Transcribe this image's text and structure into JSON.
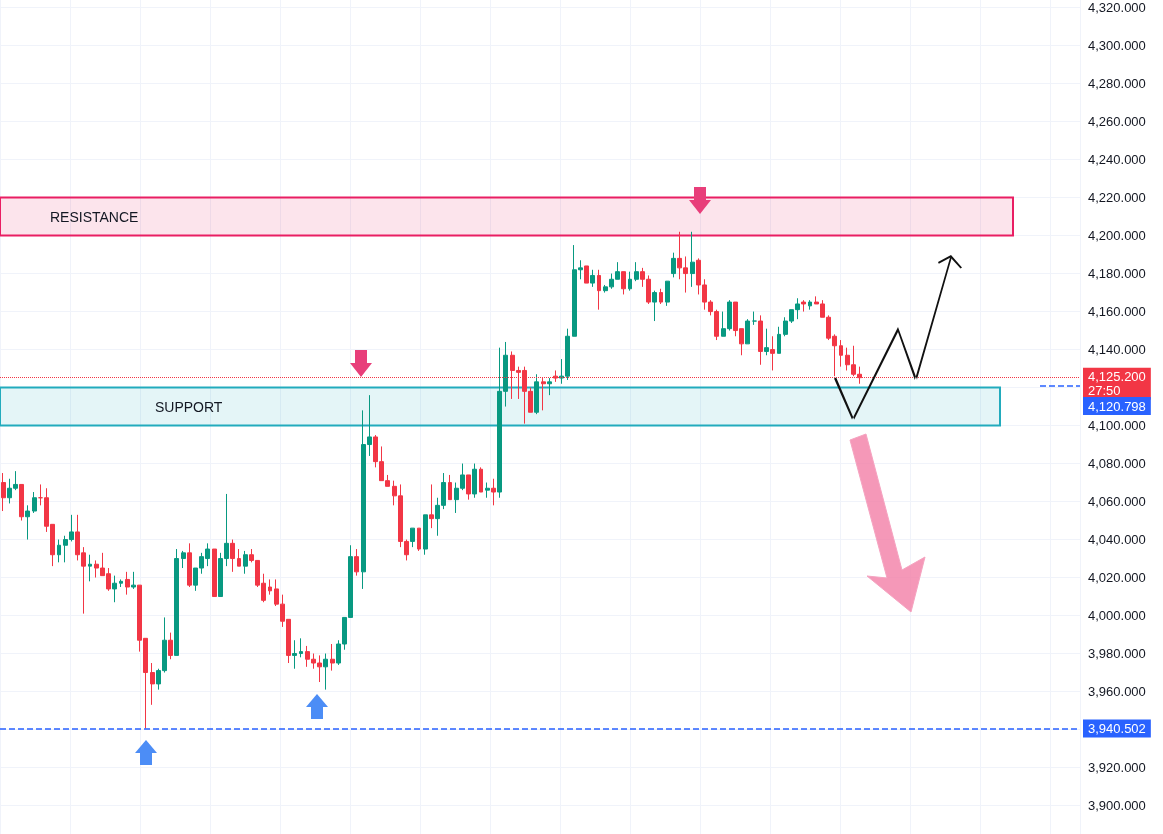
{
  "chart_data": {
    "type": "candlestick",
    "categories": [
      null,
      null,
      null,
      null,
      null,
      null,
      null,
      null,
      null,
      null,
      null,
      null,
      null,
      null,
      null,
      null,
      null,
      null,
      null,
      null,
      null,
      null,
      null,
      null,
      null,
      null,
      null,
      null,
      null,
      null,
      null,
      null,
      null,
      null,
      null,
      null,
      null,
      null,
      null,
      null,
      null,
      null,
      null,
      null,
      null,
      null,
      null,
      null,
      null,
      null,
      null,
      null,
      null,
      null,
      null,
      null,
      null,
      null,
      null,
      null,
      null,
      null,
      null,
      null,
      null,
      null,
      null,
      null,
      null,
      null,
      null,
      null,
      null,
      null,
      null,
      null,
      null,
      null,
      null,
      null,
      null,
      null,
      null,
      null,
      null,
      null,
      null,
      null,
      null,
      null,
      null,
      null,
      null,
      null,
      null,
      null,
      null,
      null,
      null,
      null,
      null,
      null,
      null,
      null,
      null,
      null,
      null,
      null,
      null,
      null,
      null,
      null,
      null,
      null,
      null,
      null,
      null,
      null,
      null,
      null,
      null,
      null,
      null,
      null,
      null,
      null,
      null,
      null,
      null,
      null,
      null,
      null,
      null,
      null,
      null,
      null,
      null,
      null,
      null,
      null,
      null,
      null,
      null,
      null,
      null,
      null,
      null,
      null,
      null,
      null,
      null,
      null,
      null,
      null,
      null,
      null,
      null,
      null,
      null,
      null,
      null,
      null,
      null,
      null,
      null,
      null,
      null,
      null,
      null,
      null,
      null,
      null,
      null,
      null
    ],
    "ohlc": [
      [
        4070,
        4075,
        4055,
        4062
      ],
      [
        4062,
        4072,
        4059,
        4067
      ],
      [
        4067,
        4076,
        4066,
        4069
      ],
      [
        4069,
        4069,
        4050,
        4052
      ],
      [
        4052,
        4058,
        4040,
        4055
      ],
      [
        4055,
        4065,
        4054,
        4062
      ],
      [
        4062,
        4069,
        4058,
        4062
      ],
      [
        4062,
        4067,
        4044,
        4047
      ],
      [
        4048,
        4048,
        4026,
        4032
      ],
      [
        4032,
        4040,
        4028,
        4037
      ],
      [
        4037,
        4042,
        4028,
        4040
      ],
      [
        4040,
        4053,
        4039,
        4044
      ],
      [
        4044,
        4053,
        4029,
        4032
      ],
      [
        4033,
        4036,
        4001,
        4026
      ],
      [
        4026,
        4032,
        4018,
        4027
      ],
      [
        4027,
        4029,
        4020,
        4025
      ],
      [
        4025,
        4033,
        4021,
        4021
      ],
      [
        4022,
        4025,
        4013,
        4014
      ],
      [
        4014,
        4021,
        4007,
        4017
      ],
      [
        4017,
        4019,
        4015,
        4018
      ],
      [
        4019,
        4023,
        4011,
        4015
      ],
      [
        4015,
        4023,
        4014,
        4016
      ],
      [
        4016,
        4016,
        3981,
        3987
      ],
      [
        3988,
        3988,
        3940.5,
        3970
      ],
      [
        3970,
        3975,
        3953,
        3964
      ],
      [
        3964,
        3972,
        3961,
        3971
      ],
      [
        3971,
        3999,
        3970,
        3987
      ],
      [
        3987,
        3991,
        3977,
        3979
      ],
      [
        3979,
        4035,
        3979,
        4030
      ],
      [
        4030,
        4034,
        4025,
        4033
      ],
      [
        4033,
        4038,
        4015,
        4016
      ],
      [
        4016,
        4025,
        4013,
        4025
      ],
      [
        4025,
        4033,
        4022,
        4031
      ],
      [
        4030,
        4038,
        4026,
        4035
      ],
      [
        4035,
        4035,
        4010,
        4010
      ],
      [
        4010,
        4033,
        4010,
        4030
      ],
      [
        4030,
        4064,
        4026,
        4038
      ],
      [
        4038,
        4040,
        4023,
        4030
      ],
      [
        4030,
        4035,
        4026,
        4026
      ],
      [
        4026,
        4034,
        4022,
        4032
      ],
      [
        4032,
        4035,
        4028,
        4029
      ],
      [
        4029,
        4029,
        4015,
        4016
      ],
      [
        4017,
        4022,
        4007,
        4008
      ],
      [
        4015,
        4019,
        4011,
        4013
      ],
      [
        4014,
        4019,
        4005,
        4006
      ],
      [
        4006,
        4011,
        3994,
        3997
      ],
      [
        3998,
        3998,
        3975,
        3979
      ],
      [
        3979,
        3987,
        3972,
        3980
      ],
      [
        3980,
        3988,
        3978,
        3981
      ],
      [
        3981,
        3984,
        3973,
        3977
      ],
      [
        3977,
        3980,
        3972,
        3975
      ],
      [
        3975,
        3979,
        3965,
        3973
      ],
      [
        3973,
        3980,
        3961,
        3977
      ],
      [
        3977,
        3985,
        3971,
        3975
      ],
      [
        3975,
        3987,
        3974,
        3985
      ],
      [
        3985,
        3999,
        3982,
        3999
      ],
      [
        3999,
        4037,
        3999,
        4031
      ],
      [
        4031,
        4035,
        4021,
        4023
      ],
      [
        4023,
        4108,
        4014,
        4090
      ],
      [
        4090,
        4116,
        4084,
        4094
      ],
      [
        4094,
        4095,
        4078,
        4081
      ],
      [
        4081,
        4089,
        4071,
        4071
      ],
      [
        4071,
        4074,
        4068,
        4068
      ],
      [
        4068,
        4071,
        4058,
        4063
      ],
      [
        4063,
        4069,
        4036,
        4039
      ],
      [
        4039,
        4040,
        4029,
        4032
      ],
      [
        4039,
        4046,
        4036,
        4046
      ],
      [
        4046,
        4046,
        4034,
        4035
      ],
      [
        4035,
        4053,
        4032,
        4053
      ],
      [
        4053,
        4069,
        4046,
        4051
      ],
      [
        4051,
        4062,
        4042,
        4058
      ],
      [
        4058,
        4075,
        4056,
        4070
      ],
      [
        4070,
        4074,
        4061,
        4061
      ],
      [
        4061,
        4070,
        4054,
        4067
      ],
      [
        4067,
        4080,
        4066,
        4074
      ],
      [
        4074,
        4074,
        4061,
        4064
      ],
      [
        4064,
        4080,
        4062,
        4077
      ],
      [
        4077,
        4078,
        4065,
        4065
      ],
      [
        4066,
        4070,
        4062,
        4067
      ],
      [
        4067,
        4072,
        4058,
        4065
      ],
      [
        4065,
        4141,
        4062,
        4118
      ],
      [
        4118,
        4144,
        4110,
        4137
      ],
      [
        4137,
        4139,
        4114,
        4129
      ],
      [
        4129,
        4131,
        4114,
        4128
      ],
      [
        4129,
        4131,
        4101,
        4118
      ],
      [
        4118,
        4120,
        4107,
        4107
      ],
      [
        4107,
        4127,
        4106,
        4123
      ],
      [
        4123,
        4125,
        4108,
        4122
      ],
      [
        4122,
        4125,
        4116,
        4123
      ],
      [
        4126,
        4129,
        4123,
        4125
      ],
      [
        4125,
        4135,
        4122,
        4126
      ],
      [
        4126,
        4151,
        4124,
        4147
      ],
      [
        4147,
        4195,
        4147,
        4182
      ],
      [
        4182,
        4187,
        4177,
        4183
      ],
      [
        4184,
        4184,
        4175,
        4175
      ],
      [
        4175,
        4182,
        4173,
        4179
      ],
      [
        4179,
        4182,
        4161,
        4171
      ],
      [
        4171,
        4174,
        4170,
        4173
      ],
      [
        4173,
        4180,
        4172,
        4177
      ],
      [
        4177,
        4186,
        4177,
        4181
      ],
      [
        4181,
        4181,
        4169,
        4172
      ],
      [
        4172,
        4181,
        4171,
        4177
      ],
      [
        4177,
        4186,
        4176,
        4181
      ],
      [
        4181,
        4183,
        4173,
        4177
      ],
      [
        4177,
        4179,
        4164,
        4165
      ],
      [
        4165,
        4171,
        4155,
        4170
      ],
      [
        4170,
        4172,
        4164,
        4165
      ],
      [
        4165,
        4176,
        4163,
        4176
      ],
      [
        4180,
        4191,
        4178,
        4188
      ],
      [
        4188,
        4202,
        4177,
        4183
      ],
      [
        4183,
        4189,
        4170,
        4180
      ],
      [
        4180,
        4202,
        4173,
        4186
      ],
      [
        4187,
        4188,
        4169,
        4174
      ],
      [
        4174,
        4177,
        4161,
        4165
      ],
      [
        4165,
        4166,
        4158,
        4160
      ],
      [
        4160,
        4161,
        4145,
        4147
      ],
      [
        4147,
        4160,
        4147,
        4151
      ],
      [
        4151,
        4166,
        4150,
        4165
      ],
      [
        4165,
        4165,
        4147,
        4150
      ],
      [
        4151,
        4151,
        4137,
        4143
      ],
      [
        4143,
        4156,
        4143,
        4155
      ],
      [
        4155,
        4160,
        4153,
        4155
      ],
      [
        4155,
        4158,
        4132,
        4139
      ],
      [
        4139,
        4151,
        4137,
        4141
      ],
      [
        4140,
        4147,
        4129,
        4138
      ],
      [
        4138,
        4152,
        4138,
        4148
      ],
      [
        4148,
        4157,
        4147,
        4155
      ],
      [
        4155,
        4161,
        4154,
        4161
      ],
      [
        4161,
        4167,
        4156,
        4164
      ],
      [
        4165,
        4166,
        4160,
        4164
      ],
      [
        4163,
        4166,
        4161,
        4165
      ],
      [
        4165,
        4168,
        4164,
        4164
      ],
      [
        4164,
        4166,
        4157,
        4157
      ],
      [
        4157,
        4158,
        4145,
        4146
      ],
      [
        4147,
        4148,
        4126,
        4142
      ],
      [
        4142,
        4145,
        4131,
        4137
      ],
      [
        4137,
        4141,
        4129,
        4132
      ],
      [
        4132,
        4142,
        4126,
        4127
      ],
      [
        4127,
        4131,
        4122,
        4125.2
      ],
      null,
      null,
      null,
      null,
      null,
      null,
      null,
      null,
      null,
      null,
      null,
      null,
      null,
      null,
      null,
      null,
      null,
      null,
      null,
      null,
      null,
      null,
      null,
      null,
      null,
      null,
      null,
      null,
      null,
      null,
      null,
      null,
      null,
      null,
      null
    ],
    "colors": [
      "#f23645",
      "#089981",
      "#089981",
      "#f23645",
      "#089981",
      "#089981",
      "#f23645",
      "#f23645",
      "#f23645",
      "#089981",
      "#089981",
      "#089981",
      "#f23645",
      "#f23645",
      "#089981",
      "#f23645",
      "#f23645",
      "#f23645",
      "#089981",
      "#089981",
      "#f23645",
      "#089981",
      "#f23645",
      "#f23645",
      "#f23645",
      "#089981",
      "#089981",
      "#f23645",
      "#089981",
      "#089981",
      "#f23645",
      "#089981",
      "#089981",
      "#089981",
      "#f23645",
      "#089981",
      "#089981",
      "#f23645",
      "#f23645",
      "#089981",
      "#f23645",
      "#f23645",
      "#f23645",
      "#f23645",
      "#f23645",
      "#f23645",
      "#f23645",
      "#089981",
      "#089981",
      "#f23645",
      "#f23645",
      "#f23645",
      "#089981",
      "#f23645",
      "#089981",
      "#089981",
      "#089981",
      "#f23645",
      "#089981",
      "#089981",
      "#f23645",
      "#f23645",
      "#f23645",
      "#f23645",
      "#f23645",
      "#f23645",
      "#089981",
      "#f23645",
      "#089981",
      "#f23645",
      "#089981",
      "#089981",
      "#f23645",
      "#089981",
      "#089981",
      "#f23645",
      "#089981",
      "#f23645",
      "#089981",
      "#f23645",
      "#089981",
      "#089981",
      "#f23645",
      "#f23645",
      "#f23645",
      "#f23645",
      "#089981",
      "#f23645",
      "#089981",
      "#f23645",
      "#089981",
      "#089981",
      "#089981",
      "#089981",
      "#f23645",
      "#089981",
      "#f23645",
      "#089981",
      "#089981",
      "#089981",
      "#f23645",
      "#089981",
      "#089981",
      "#f23645",
      "#f23645",
      "#089981",
      "#f23645",
      "#089981",
      "#089981",
      "#f23645",
      "#f23645",
      "#089981",
      "#f23645",
      "#f23645",
      "#f23645",
      "#f23645",
      "#089981",
      "#089981",
      "#f23645",
      "#f23645",
      "#089981",
      "#089981",
      "#f23645",
      "#089981",
      "#f23645",
      "#089981",
      "#089981",
      "#089981",
      "#089981",
      "#f23645",
      "#089981",
      "#f23645",
      "#f23645",
      "#f23645",
      "#f23645",
      "#f23645",
      "#f23645",
      "#f23645",
      "#f23645",
      null,
      null,
      null,
      null,
      null,
      null,
      null,
      null,
      null,
      null,
      null,
      null,
      null,
      null,
      null,
      null,
      null,
      null,
      null,
      null,
      null,
      null,
      null,
      null,
      null,
      null,
      null,
      null,
      null,
      null,
      null,
      null,
      null,
      null,
      null
    ],
    "ylim": [
      3885,
      4324
    ],
    "yticks": [
      {
        "value": 3900,
        "label": "3,900.000"
      },
      {
        "value": 3920,
        "label": "3,920.000"
      },
      {
        "value": 3940,
        "label": null
      },
      {
        "value": 3960,
        "label": "3,960.000"
      },
      {
        "value": 3980,
        "label": "3,980.000"
      },
      {
        "value": 4000,
        "label": "4,000.000"
      },
      {
        "value": 4020,
        "label": "4,020.000"
      },
      {
        "value": 4040,
        "label": "4,040.000"
      },
      {
        "value": 4060,
        "label": "4,060.000"
      },
      {
        "value": 4080,
        "label": "4,080.000"
      },
      {
        "value": 4100,
        "label": "4,100.000"
      },
      {
        "value": 4120,
        "label": null
      },
      {
        "value": 4140,
        "label": "4,140.000"
      },
      {
        "value": 4160,
        "label": "4,160.000"
      },
      {
        "value": 4180,
        "label": "4,180.000"
      },
      {
        "value": 4200,
        "label": "4,200.000"
      },
      {
        "value": 4220,
        "label": "4,220.000"
      },
      {
        "value": 4240,
        "label": "4,240.000"
      },
      {
        "value": 4260,
        "label": "4,260.000"
      },
      {
        "value": 4280,
        "label": "4,280.000"
      },
      {
        "value": 4300,
        "label": "4,300.000"
      },
      {
        "value": 4320,
        "label": "4,320.000"
      }
    ],
    "tick_labels": "y",
    "grid": true,
    "bands": [
      {
        "axis": "y",
        "from": 4200,
        "to": 4220,
        "label": "RESISTANCE",
        "color": "#e91e63"
      },
      {
        "axis": "y",
        "from": 4100,
        "to": 4120,
        "label": "SUPPORT",
        "color": "#22abbd"
      }
    ],
    "ref_lines": [
      {
        "axis": "y",
        "value": 4125.2,
        "label": "4,125.200",
        "color": "#f23645",
        "line_style": "dotted"
      },
      {
        "axis": "y",
        "value": 4120.798,
        "label": "4,120.798",
        "color": "#2962ff",
        "line_style": "dashed"
      },
      {
        "axis": "y",
        "value": 3940.502,
        "label": "3,940.502",
        "color": "#2962ff",
        "line_style": "dashed"
      }
    ],
    "annotations": [
      "27:50"
    ]
  }
}
